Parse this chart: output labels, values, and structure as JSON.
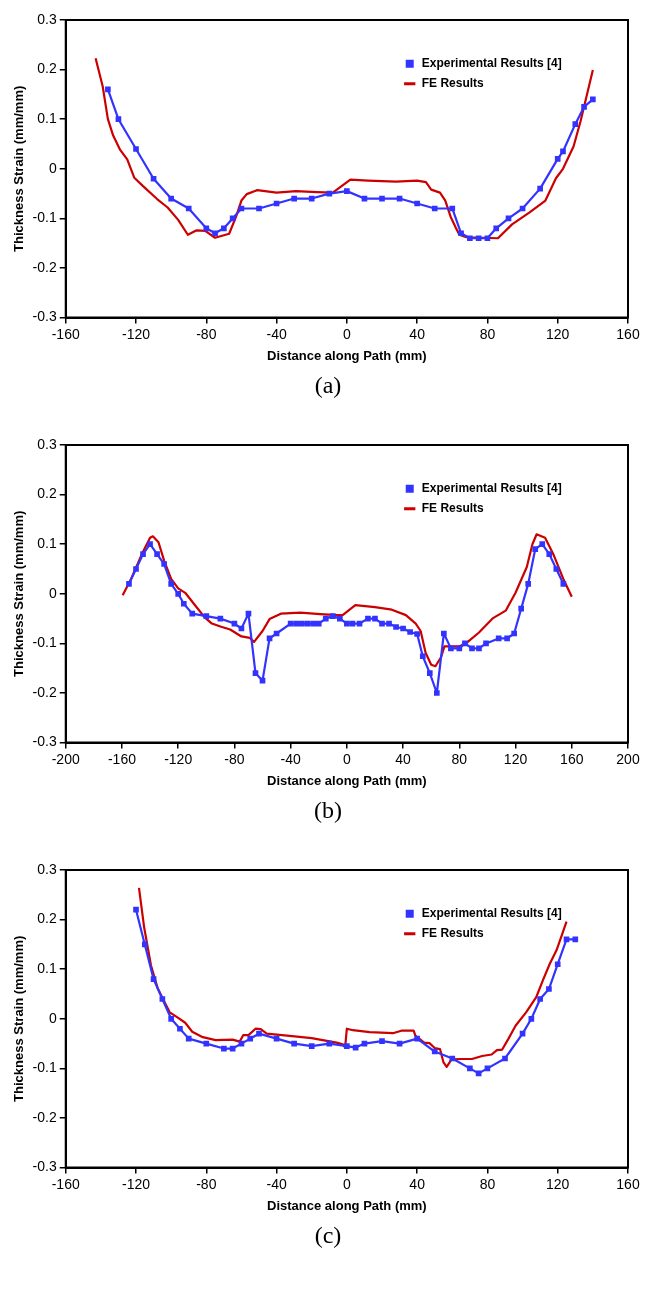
{
  "chart_data": [
    {
      "type": "line",
      "xlabel": "Distance along Path (mm)",
      "ylabel": "Thickness Strain (mm/mm)",
      "xlim": [
        -160,
        160
      ],
      "xticks": [
        -160,
        -120,
        -80,
        -40,
        0,
        40,
        80,
        120,
        160
      ],
      "ylim": [
        -0.3,
        0.3
      ],
      "yticks": [
        -0.3,
        -0.2,
        -0.1,
        0,
        0.1,
        0.2,
        0.3
      ],
      "grid": false,
      "legend": "top right",
      "annotations": [
        "(a)"
      ],
      "series": [
        {
          "name": "FE Results",
          "color": "#cc0000",
          "type": "line",
          "marker": "none",
          "x": [
            -143,
            -139,
            -136,
            -133,
            -129,
            -125,
            -121,
            -116,
            -108,
            -102,
            -96,
            -90.5,
            -85.5,
            -80.6,
            -75,
            -67,
            -63,
            -60,
            -57,
            -51,
            -40,
            -29,
            -17,
            -8,
            2,
            12,
            28,
            40,
            45,
            48,
            53,
            56,
            59,
            62,
            64,
            68,
            86,
            94,
            104,
            113,
            119,
            123,
            129,
            133,
            140
          ],
          "values": [
            0.223,
            0.167,
            0.1,
            0.067,
            0.038,
            0.019,
            -0.018,
            -0.035,
            -0.061,
            -0.078,
            -0.103,
            -0.133,
            -0.124,
            -0.125,
            -0.139,
            -0.131,
            -0.096,
            -0.064,
            -0.051,
            -0.043,
            -0.048,
            -0.045,
            -0.047,
            -0.048,
            -0.022,
            -0.024,
            -0.026,
            -0.024,
            -0.027,
            -0.042,
            -0.048,
            -0.064,
            -0.096,
            -0.119,
            -0.133,
            -0.138,
            -0.14,
            -0.112,
            -0.088,
            -0.064,
            -0.019,
            0,
            0.045,
            0.096,
            0.199
          ]
        },
        {
          "name": "Experimental Results [4]",
          "color": "#3333ff",
          "type": "line",
          "marker": "square",
          "x": [
            -136,
            -130,
            -120,
            -110,
            -100,
            -90,
            -80,
            -75,
            -70,
            -65,
            -60,
            -50,
            -40,
            -30,
            -20,
            -10,
            0,
            10,
            20,
            30,
            40,
            50,
            60,
            65,
            70,
            75,
            80,
            85,
            92,
            100,
            110,
            120,
            123,
            130,
            135,
            140
          ],
          "values": [
            0.16,
            0.1,
            0.04,
            -0.02,
            -0.06,
            -0.08,
            -0.12,
            -0.13,
            -0.12,
            -0.1,
            -0.08,
            -0.08,
            -0.07,
            -0.06,
            -0.06,
            -0.05,
            -0.045,
            -0.06,
            -0.06,
            -0.06,
            -0.07,
            -0.08,
            -0.08,
            -0.13,
            -0.14,
            -0.14,
            -0.14,
            -0.12,
            -0.1,
            -0.08,
            -0.04,
            0.02,
            0.035,
            0.09,
            0.125,
            0.14
          ]
        }
      ]
    },
    {
      "type": "line",
      "xlabel": "Distance along Path (mm)",
      "ylabel": "Thickness Strain (mm/mm)",
      "xlim": [
        -200,
        200
      ],
      "xticks": [
        -200,
        -160,
        -120,
        -80,
        -40,
        0,
        40,
        80,
        120,
        160,
        200
      ],
      "ylim": [
        -0.3,
        0.3
      ],
      "yticks": [
        -0.3,
        -0.2,
        -0.1,
        0,
        0.1,
        0.2,
        0.3
      ],
      "grid": false,
      "legend": "top right",
      "annotations": [
        "(b)"
      ],
      "series": [
        {
          "name": "FE Results",
          "color": "#cc0000",
          "type": "line",
          "marker": "none",
          "x": [
            -159.5,
            -153.5,
            -146,
            -140,
            -138,
            -134,
            -130,
            -125,
            -120,
            -115,
            -108,
            -101,
            -96,
            -90,
            -83,
            -75,
            -69,
            -66,
            -60,
            -55,
            -47,
            -33,
            -19,
            -6.5,
            -3,
            6,
            20,
            32,
            42,
            49,
            52.5,
            56,
            60,
            63,
            67,
            69.4,
            80,
            86,
            94,
            104,
            113,
            120,
            128,
            132,
            135,
            141,
            147,
            154,
            160
          ],
          "values": [
            -0.003,
            0.03,
            0.079,
            0.113,
            0.116,
            0.104,
            0.067,
            0.03,
            0.011,
            0.002,
            -0.023,
            -0.048,
            -0.06,
            -0.066,
            -0.072,
            -0.086,
            -0.089,
            -0.097,
            -0.075,
            -0.051,
            -0.04,
            -0.038,
            -0.041,
            -0.043,
            -0.043,
            -0.023,
            -0.027,
            -0.032,
            -0.043,
            -0.06,
            -0.075,
            -0.119,
            -0.143,
            -0.146,
            -0.128,
            -0.106,
            -0.106,
            -0.097,
            -0.078,
            -0.049,
            -0.034,
            0.002,
            0.054,
            0.1,
            0.12,
            0.113,
            0.079,
            0.03,
            -0.006
          ]
        },
        {
          "name": "Experimental Results [4]",
          "color": "#3333ff",
          "type": "line",
          "marker": "square",
          "x": [
            -155,
            -150,
            -145,
            -140,
            -135,
            -130,
            -125,
            -120,
            -116,
            -110,
            -100,
            -90,
            -80,
            -75,
            -70,
            -65,
            -60,
            -55,
            -50,
            -40,
            -36,
            -32,
            -28,
            -24,
            -20,
            -15,
            -10,
            -5,
            0,
            4,
            9,
            15,
            20,
            25,
            30,
            35,
            40,
            45,
            50,
            54,
            59,
            64,
            69,
            74,
            80,
            84,
            89,
            94,
            99,
            108,
            114,
            119,
            124,
            129,
            134,
            139,
            144,
            149,
            154
          ],
          "values": [
            0.02,
            0.05,
            0.08,
            0.1,
            0.08,
            0.06,
            0.02,
            0,
            -0.02,
            -0.04,
            -0.045,
            -0.05,
            -0.06,
            -0.07,
            -0.04,
            -0.16,
            -0.175,
            -0.09,
            -0.08,
            -0.06,
            -0.06,
            -0.06,
            -0.06,
            -0.06,
            -0.06,
            -0.05,
            -0.045,
            -0.05,
            -0.06,
            -0.06,
            -0.06,
            -0.05,
            -0.05,
            -0.06,
            -0.06,
            -0.067,
            -0.07,
            -0.077,
            -0.081,
            -0.126,
            -0.16,
            -0.2,
            -0.08,
            -0.11,
            -0.11,
            -0.1,
            -0.11,
            -0.11,
            -0.1,
            -0.09,
            -0.09,
            -0.08,
            -0.03,
            0.02,
            0.09,
            0.1,
            0.08,
            0.05,
            0.02
          ]
        }
      ]
    },
    {
      "type": "line",
      "xlabel": "Distance along Path (mm)",
      "ylabel": "Thickness Strain (mm/mm)",
      "xlim": [
        -160,
        160
      ],
      "xticks": [
        -160,
        -120,
        -80,
        -40,
        0,
        40,
        80,
        120,
        160
      ],
      "ylim": [
        -0.3,
        0.3
      ],
      "yticks": [
        -0.3,
        -0.2,
        -0.1,
        0,
        0.1,
        0.2,
        0.3
      ],
      "grid": false,
      "legend": "top right",
      "annotations": [
        "(c)"
      ],
      "series": [
        {
          "name": "FE Results",
          "color": "#cc0000",
          "type": "line",
          "marker": "none",
          "x": [
            -118.3,
            -115.4,
            -111.5,
            -107.6,
            -103.8,
            -100.8,
            -96,
            -92,
            -88,
            -82,
            -74.7,
            -65,
            -61,
            -59,
            -56,
            -52,
            -49,
            -45.6,
            -34,
            -20,
            -10.6,
            -5.8,
            -2,
            -1,
            0,
            3.4,
            13,
            26.2,
            31,
            38,
            39,
            44,
            47,
            50,
            53,
            55,
            56.8,
            59.6,
            65.4,
            71.2,
            77,
            82.4,
            85.4,
            88.4,
            92,
            96,
            102,
            107.7,
            111.6,
            115.5,
            119.3,
            122.3,
            125
          ],
          "values": [
            0.264,
            0.185,
            0.108,
            0.061,
            0.034,
            0.013,
            0.002,
            -0.008,
            -0.026,
            -0.037,
            -0.043,
            -0.042,
            -0.046,
            -0.033,
            -0.033,
            -0.02,
            -0.021,
            -0.03,
            -0.034,
            -0.039,
            -0.045,
            -0.048,
            -0.052,
            -0.058,
            -0.02,
            -0.023,
            -0.027,
            -0.029,
            -0.024,
            -0.024,
            -0.034,
            -0.048,
            -0.049,
            -0.059,
            -0.061,
            -0.088,
            -0.097,
            -0.082,
            -0.081,
            -0.081,
            -0.075,
            -0.072,
            -0.063,
            -0.062,
            -0.04,
            -0.014,
            0.013,
            0.043,
            0.078,
            0.111,
            0.138,
            0.168,
            0.196
          ]
        },
        {
          "name": "Experimental Results [4]",
          "color": "#3333ff",
          "type": "line",
          "marker": "square",
          "x": [
            -120,
            -115,
            -110,
            -105,
            -100,
            -95,
            -90,
            -80,
            -70,
            -65,
            -60,
            -55,
            -50,
            -40,
            -30,
            -20,
            -10,
            0,
            5,
            10,
            20,
            30,
            40,
            50,
            60,
            70,
            75,
            80,
            90,
            100,
            105,
            110,
            115,
            120,
            125,
            130
          ],
          "values": [
            0.22,
            0.15,
            0.08,
            0.04,
            0,
            -0.02,
            -0.04,
            -0.05,
            -0.06,
            -0.06,
            -0.05,
            -0.04,
            -0.03,
            -0.04,
            -0.05,
            -0.055,
            -0.05,
            -0.055,
            -0.058,
            -0.05,
            -0.045,
            -0.05,
            -0.04,
            -0.066,
            -0.08,
            -0.1,
            -0.11,
            -0.1,
            -0.08,
            -0.03,
            0,
            0.04,
            0.06,
            0.11,
            0.16,
            0.16
          ]
        }
      ]
    }
  ]
}
